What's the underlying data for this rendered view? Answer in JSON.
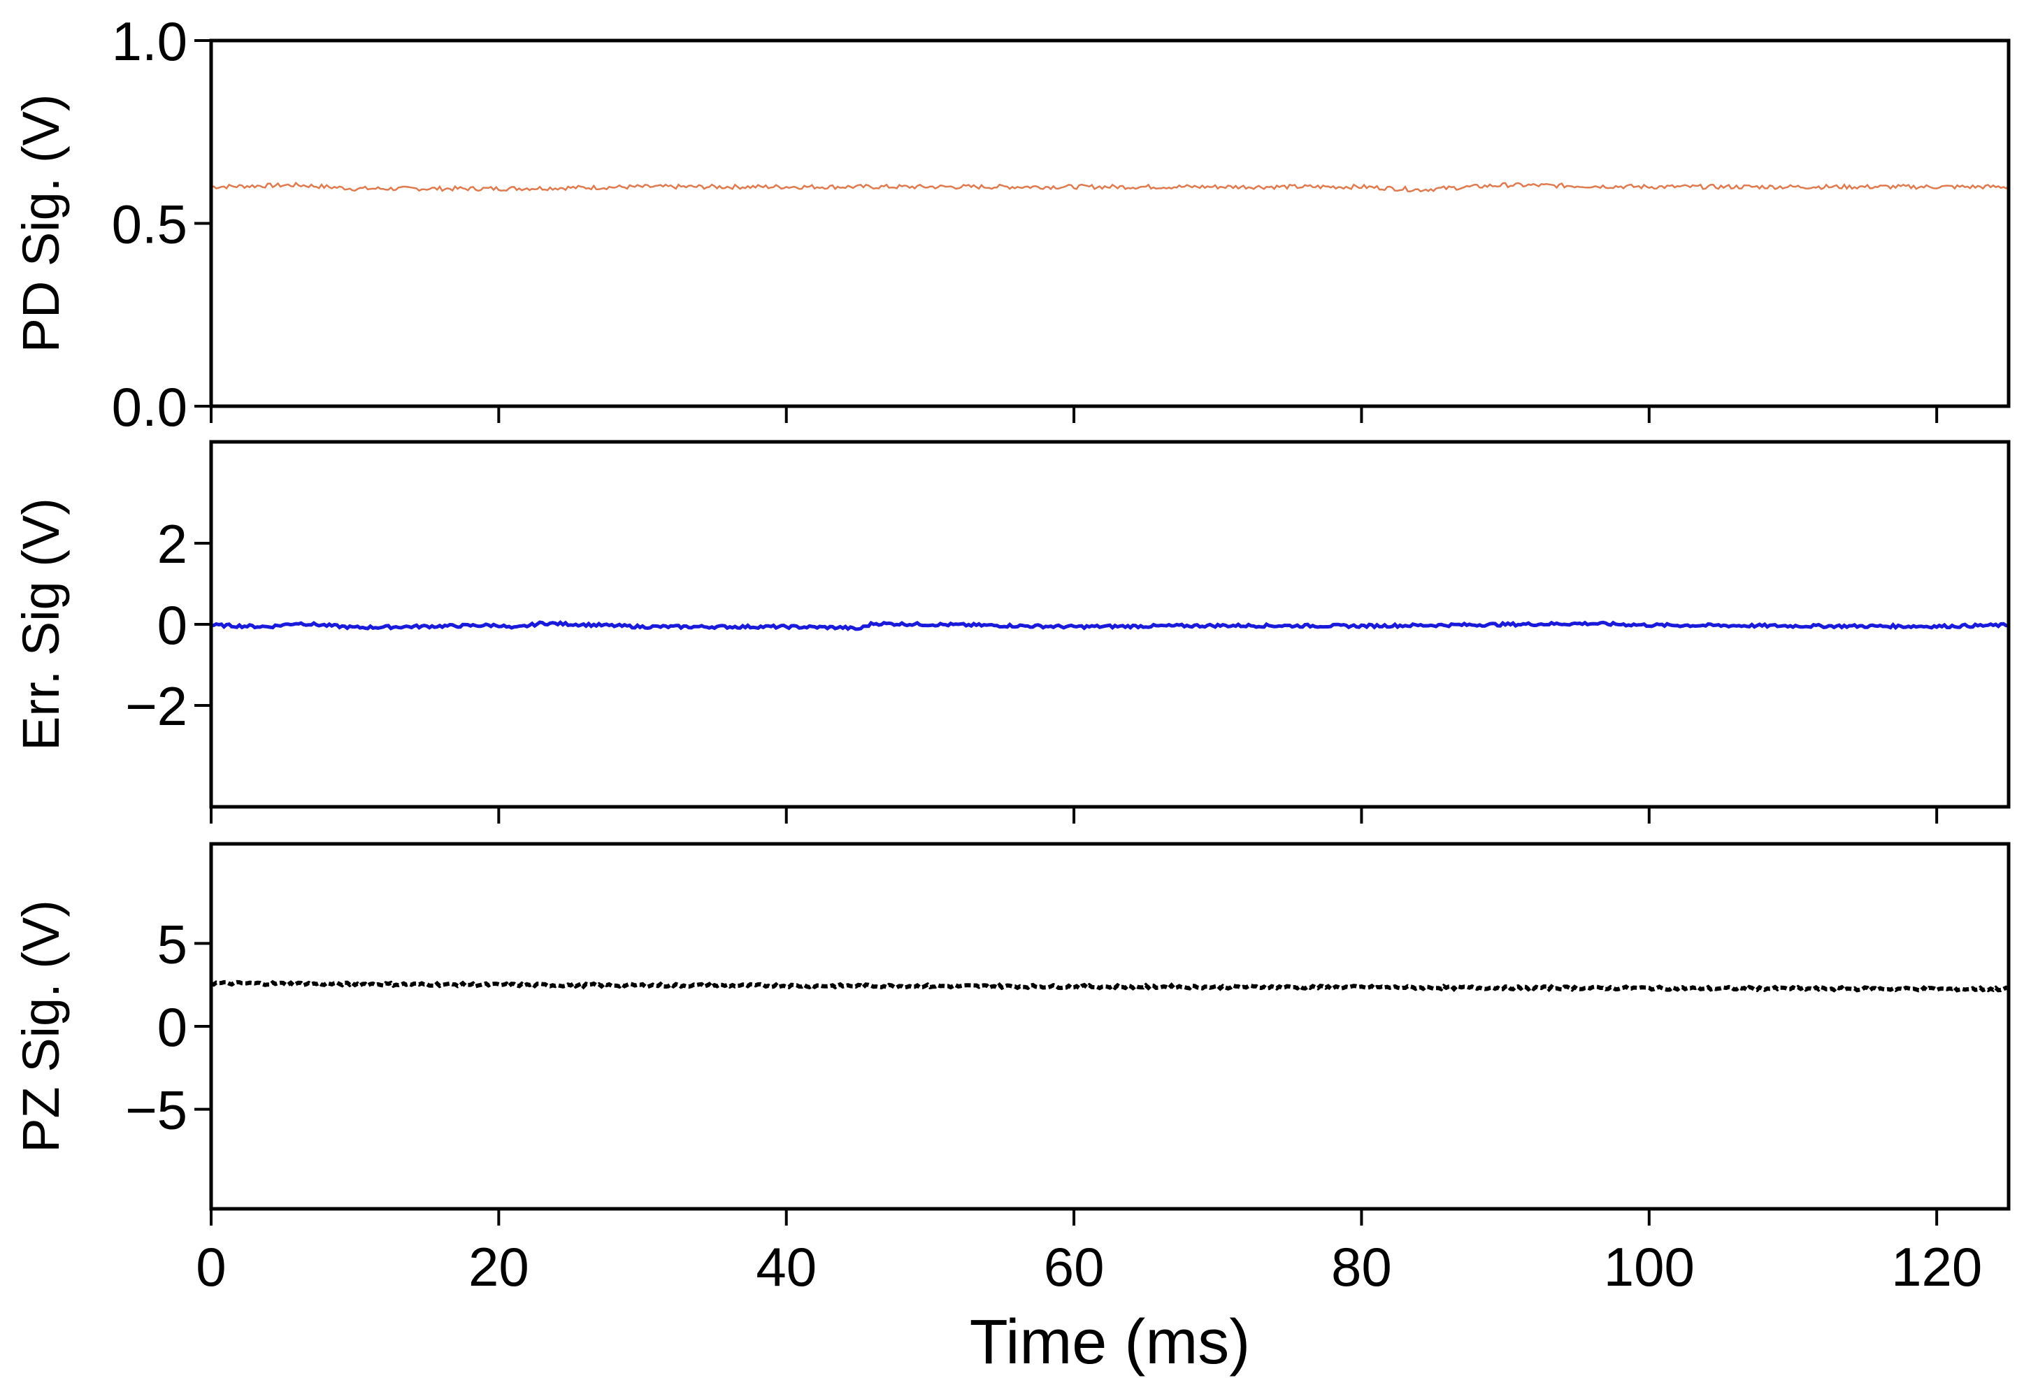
{
  "chart_data": [
    {
      "type": "line",
      "ylabel": "PD Sig. (V)",
      "xlabel": "",
      "xlim": [
        0,
        125
      ],
      "ylim": [
        0.0,
        1.0
      ],
      "yticks": [
        0.0,
        0.5,
        1.0
      ],
      "ytick_labels": [
        "0.0",
        "0.5",
        "1.0"
      ],
      "xticks": [
        0,
        20,
        40,
        60,
        80,
        100,
        120
      ],
      "xtick_labels": [],
      "grid": false,
      "series": [
        {
          "color": "#e07a4f",
          "style": "solid",
          "x": [
            0,
            6,
            10,
            20,
            30,
            40,
            50,
            60,
            70,
            80,
            84,
            90,
            100,
            110,
            120,
            125
          ],
          "y": [
            0.6,
            0.605,
            0.595,
            0.595,
            0.6,
            0.6,
            0.6,
            0.6,
            0.6,
            0.6,
            0.592,
            0.605,
            0.6,
            0.6,
            0.6,
            0.6
          ]
        }
      ]
    },
    {
      "type": "line",
      "ylabel": "Err. Sig (V)",
      "xlabel": "",
      "xlim": [
        0,
        125
      ],
      "ylim": [
        -4.5,
        4.5
      ],
      "yticks": [
        -2,
        0,
        2
      ],
      "ytick_labels": [
        "−2",
        "0",
        "2"
      ],
      "xticks": [
        0,
        20,
        40,
        60,
        80,
        100,
        120
      ],
      "xtick_labels": [],
      "grid": false,
      "series": [
        {
          "color": "#1a1adb",
          "style": "solid",
          "x": [
            0,
            4,
            6,
            10,
            20,
            21,
            23,
            30,
            40,
            44,
            45,
            46,
            60,
            70,
            80,
            96,
            100,
            110,
            120,
            125
          ],
          "y": [
            -0.02,
            -0.06,
            0.03,
            -0.08,
            -0.02,
            -0.1,
            0.03,
            -0.06,
            -0.06,
            -0.08,
            -0.12,
            0.02,
            -0.06,
            -0.03,
            -0.04,
            0.02,
            -0.02,
            -0.04,
            -0.05,
            -0.02
          ]
        }
      ]
    },
    {
      "type": "line",
      "ylabel": "PZ Sig. (V)",
      "xlabel": "Time (ms)",
      "xlim": [
        0,
        125
      ],
      "ylim": [
        -11,
        11
      ],
      "yticks": [
        -5,
        0,
        5
      ],
      "ytick_labels": [
        "−5",
        "0",
        "5"
      ],
      "xticks": [
        0,
        20,
        40,
        60,
        80,
        100,
        120
      ],
      "xtick_labels": [
        "0",
        "20",
        "40",
        "60",
        "80",
        "100",
        "120"
      ],
      "grid": false,
      "series": [
        {
          "color": "#000000",
          "style": "dashed",
          "x": [
            0,
            20,
            40,
            60,
            80,
            100,
            120,
            125
          ],
          "y": [
            2.6,
            2.5,
            2.45,
            2.4,
            2.35,
            2.3,
            2.25,
            2.25
          ]
        }
      ]
    }
  ]
}
